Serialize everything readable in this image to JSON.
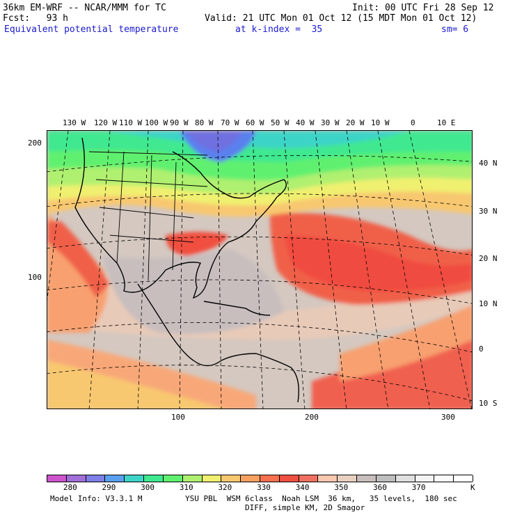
{
  "header": {
    "model": "36km EM-WRF -- NCAR/MMM for TC",
    "init": "Init: 00 UTC Fri 28 Sep 12",
    "fcst": "Fcst:   93 h",
    "valid": "Valid: 21 UTC Mon 01 Oct 12 (15 MDT Mon 01 Oct 12)",
    "field": "Equivalent potential temperature",
    "level": "at k-index =  35",
    "smooth": "sm= 6"
  },
  "map": {
    "top_lon_labels": [
      "130 W",
      "120 W",
      "110 W",
      "100 W",
      "90 W",
      "80 W",
      "70 W",
      "60 W",
      "50 W",
      "40 W",
      "30 W",
      "20 W",
      "10 W",
      "0",
      "10 E"
    ],
    "right_lat_labels": [
      "40 N",
      "30 N",
      "20 N",
      "10 N",
      "0",
      "10 S"
    ],
    "left_grid_labels": [
      "200",
      "100"
    ],
    "bottom_grid_labels": [
      "100",
      "200",
      "300"
    ]
  },
  "legend": {
    "colors": [
      "#cc55cc",
      "#a070d8",
      "#7f7fe6",
      "#5aa0ee",
      "#3dd4c8",
      "#40e890",
      "#60f070",
      "#b0f070",
      "#f0f070",
      "#f8c870",
      "#f8a060",
      "#f87050",
      "#f05040",
      "#f07060",
      "#f8c8b0",
      "#e8d0c0",
      "#c8bebe",
      "#bebebe",
      "#e0e0e0",
      "#f4f4f4",
      "#fafafa",
      "#ffffff"
    ],
    "labels": [
      "280",
      "290",
      "300",
      "310",
      "320",
      "330",
      "340",
      "350",
      "360",
      "370"
    ],
    "unit": "K"
  },
  "footer": {
    "model_info": "Model Info: V3.3.1 M",
    "physics": "YSU PBL  WSM 6class  Noah LSM  36 km,   35 levels,  180 sec",
    "diff": "DIFF, simple KM, 2D Smagor"
  }
}
